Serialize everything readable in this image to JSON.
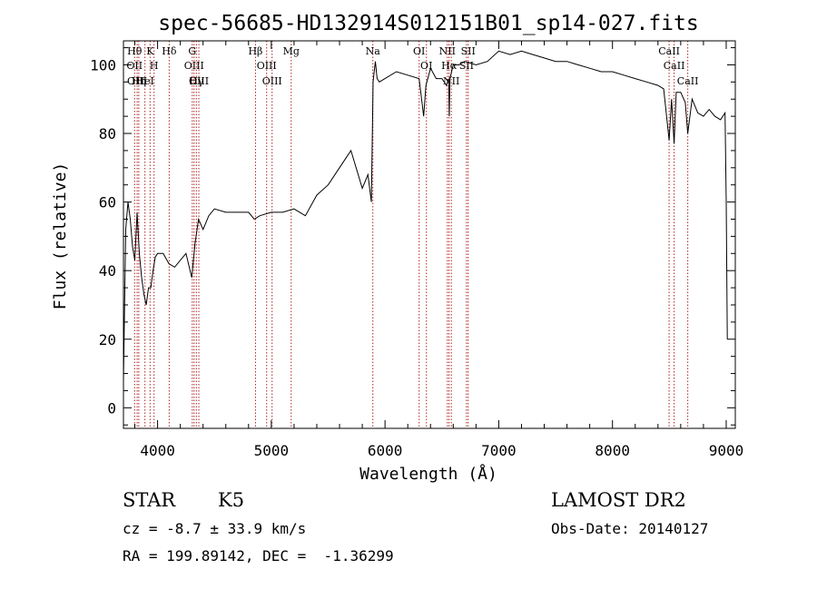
{
  "chart_data": {
    "type": "line",
    "title": "spec-56685-HD132914S012151B01_sp14-027.fits",
    "xlabel": "Wavelength (Å)",
    "ylabel": "Flux (relative)",
    "xlim": [
      3700,
      9080
    ],
    "ylim": [
      -6,
      107
    ],
    "xticks": [
      4000,
      5000,
      6000,
      7000,
      8000,
      9000
    ],
    "yticks": [
      0,
      20,
      40,
      60,
      80,
      100
    ],
    "grid": false,
    "line_color": "#000000",
    "marker_color": "#b22222",
    "series": [
      {
        "x": [
          3700,
          3720,
          3740,
          3760,
          3780,
          3800,
          3820,
          3840,
          3860,
          3880,
          3900,
          3920,
          3940,
          3960,
          3980,
          4000,
          4050,
          4100,
          4150,
          4200,
          4250,
          4300,
          4330,
          4360,
          4400,
          4450,
          4500,
          4600,
          4700,
          4800,
          4850,
          4900,
          5000,
          5100,
          5200,
          5300,
          5400,
          5500,
          5600,
          5700,
          5800,
          5850,
          5880,
          5895,
          5905,
          5915,
          5930,
          5950,
          6000,
          6100,
          6200,
          6300,
          6340,
          6360,
          6400,
          6450,
          6500,
          6540,
          6560,
          6565,
          6570,
          6600,
          6650,
          6700,
          6800,
          6900,
          7000,
          7100,
          7200,
          7300,
          7400,
          7500,
          7600,
          7700,
          7800,
          7900,
          8000,
          8100,
          8200,
          8300,
          8400,
          8450,
          8498,
          8520,
          8542,
          8560,
          8600,
          8640,
          8662,
          8700,
          8750,
          8800,
          8850,
          8900,
          8950,
          8990,
          9000,
          9010
        ],
        "values": [
          8,
          52,
          60,
          55,
          47,
          43,
          57,
          45,
          38,
          33,
          30,
          35,
          35,
          40,
          44,
          45,
          45,
          42,
          41,
          43,
          45,
          38,
          48,
          55,
          52,
          56,
          58,
          57,
          57,
          57,
          55,
          56,
          57,
          57,
          58,
          56,
          62,
          65,
          70,
          75,
          64,
          68,
          60,
          95,
          98,
          101,
          96,
          95,
          96,
          98,
          97,
          96,
          85,
          94,
          99,
          96,
          96,
          94,
          96,
          85,
          96,
          100,
          100,
          101,
          100,
          101,
          104,
          103,
          104,
          103,
          102,
          101,
          101,
          100,
          99,
          98,
          98,
          97,
          96,
          95,
          94,
          93,
          78,
          90,
          77,
          92,
          92,
          89,
          80,
          90,
          86,
          85,
          87,
          85,
          84,
          86,
          60,
          20
        ]
      }
    ],
    "line_markers": [
      {
        "labels": [
          "Hθ",
          "OII"
        ],
        "x": 3798
      },
      {
        "labels": [
          "OIII"
        ],
        "x": 3820
      },
      {
        "labels": [
          "Hη"
        ],
        "x": 3835
      },
      {
        "labels": [
          "HeI"
        ],
        "x": 3889
      },
      {
        "labels": [
          "K"
        ],
        "x": 3934
      },
      {
        "labels": [
          "H"
        ],
        "x": 3969
      },
      {
        "labels": [
          "Hδ"
        ],
        "x": 4102
      },
      {
        "labels": [
          "G"
        ],
        "x": 4305
      },
      {
        "labels": [
          "OIII"
        ],
        "x": 4321
      },
      {
        "labels": [
          "Hγ"
        ],
        "x": 4341
      },
      {
        "labels": [
          "OIII"
        ],
        "x": 4363
      },
      {
        "labels": [
          "Hβ"
        ],
        "x": 4861
      },
      {
        "labels": [
          "OIII"
        ],
        "x": 4959
      },
      {
        "labels": [
          "OIII"
        ],
        "x": 5007
      },
      {
        "labels": [
          "Mg"
        ],
        "x": 5175
      },
      {
        "labels": [
          "Na"
        ],
        "x": 5893
      },
      {
        "labels": [
          "OI"
        ],
        "x": 6300
      },
      {
        "labels": [
          "OI"
        ],
        "x": 6364
      },
      {
        "labels": [
          "NII"
        ],
        "x": 6548
      },
      {
        "labels": [
          "Hα"
        ],
        "x": 6563
      },
      {
        "labels": [
          "NII"
        ],
        "x": 6583
      },
      {
        "labels": [
          "SII"
        ],
        "x": 6716
      },
      {
        "labels": [
          "SII"
        ],
        "x": 6731
      },
      {
        "labels": [
          "CaII"
        ],
        "x": 8498
      },
      {
        "labels": [
          "CaII"
        ],
        "x": 8542
      },
      {
        "labels": [
          "CaII"
        ],
        "x": 8662
      }
    ]
  },
  "info": {
    "object_class": "STAR",
    "subclass": "K5",
    "survey": "LAMOST DR2",
    "redshift": "cz = -8.7 ± 33.9 km/s",
    "obs_date": "Obs-Date: 20140127",
    "coords": "RA = 199.89142, DEC =  -1.36299"
  }
}
